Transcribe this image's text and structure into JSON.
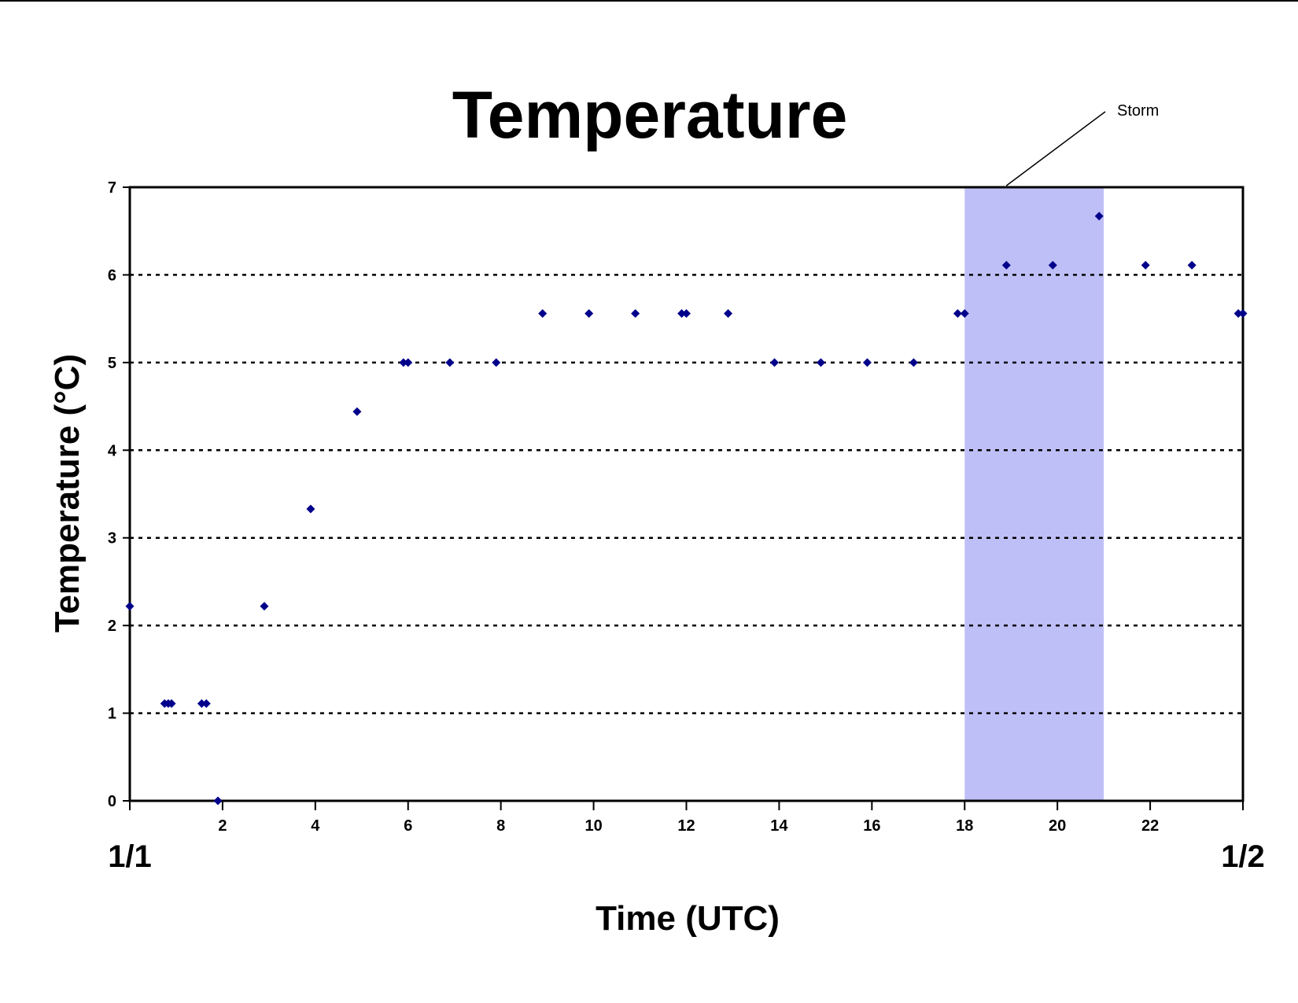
{
  "chart_data": {
    "type": "scatter",
    "title": "Temperature",
    "xlabel": "Time (UTC)",
    "ylabel": "Temperature (°C)",
    "xlim": [
      0,
      24
    ],
    "ylim": [
      0,
      7
    ],
    "x_ticks": [
      2,
      4,
      6,
      8,
      10,
      12,
      14,
      16,
      18,
      20,
      22
    ],
    "y_ticks": [
      0,
      1,
      2,
      3,
      4,
      5,
      6,
      7
    ],
    "x_date_labels": {
      "start": "1/1",
      "end": "1/2"
    },
    "grid": "horizontal dotted",
    "marker": "diamond",
    "series_color": "#00008B",
    "highlight": {
      "label": "Storm",
      "x_start": 18,
      "x_end": 21,
      "color": "#BFBFF8"
    },
    "points": [
      [
        0.0,
        2.22
      ],
      [
        0.75,
        1.11
      ],
      [
        0.83,
        1.11
      ],
      [
        0.9,
        1.11
      ],
      [
        1.55,
        1.11
      ],
      [
        1.65,
        1.11
      ],
      [
        1.9,
        0.0
      ],
      [
        2.9,
        2.22
      ],
      [
        3.9,
        3.33
      ],
      [
        4.9,
        4.44
      ],
      [
        5.9,
        5.0
      ],
      [
        6.0,
        5.0
      ],
      [
        6.9,
        5.0
      ],
      [
        7.9,
        5.0
      ],
      [
        8.9,
        5.56
      ],
      [
        9.9,
        5.56
      ],
      [
        10.9,
        5.56
      ],
      [
        11.9,
        5.56
      ],
      [
        12.0,
        5.56
      ],
      [
        12.9,
        5.56
      ],
      [
        13.9,
        5.0
      ],
      [
        14.9,
        5.0
      ],
      [
        15.9,
        5.0
      ],
      [
        16.9,
        5.0
      ],
      [
        17.85,
        5.56
      ],
      [
        18.0,
        5.56
      ],
      [
        18.9,
        6.11
      ],
      [
        19.9,
        6.11
      ],
      [
        20.9,
        6.67
      ],
      [
        21.9,
        6.11
      ],
      [
        22.9,
        6.11
      ],
      [
        23.9,
        5.56
      ],
      [
        24.0,
        5.56
      ]
    ]
  }
}
